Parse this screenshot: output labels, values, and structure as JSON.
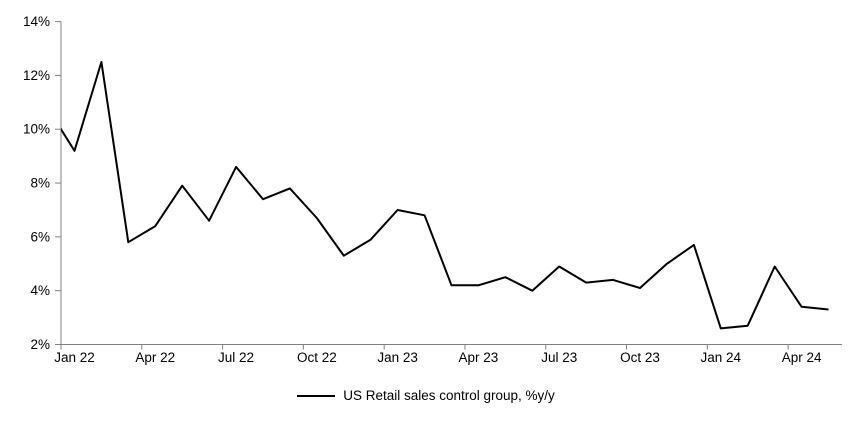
{
  "chart_data": {
    "type": "line",
    "title": "",
    "xlabel": "",
    "ylabel": "",
    "ylim": [
      2,
      14
    ],
    "ytick_step": 2,
    "ytick_labels": [
      "2%",
      "4%",
      "6%",
      "8%",
      "10%",
      "12%",
      "14%"
    ],
    "xtick_labels": [
      "Jan 22",
      "Apr 22",
      "Jul 22",
      "Oct 22",
      "Jan 23",
      "Apr 23",
      "Jul 23",
      "Oct 23",
      "Jan 24",
      "Apr 24"
    ],
    "x_label_interval_months": 3,
    "grid": false,
    "legend_position": "bottom-center",
    "colors": {
      "line": "#000000",
      "axis": "#808080",
      "tick_text": "#000000",
      "background": "#ffffff"
    },
    "series": [
      {
        "name": "US Retail sales control group, %y/y",
        "points": [
          {
            "label": "Dec 21",
            "value": 10.8,
            "clipped_at_left_edge": true
          },
          {
            "label": "Jan 22",
            "value": 9.2
          },
          {
            "label": "Feb 22",
            "value": 12.5
          },
          {
            "label": "Mar 22",
            "value": 5.8
          },
          {
            "label": "Apr 22",
            "value": 6.4
          },
          {
            "label": "May 22",
            "value": 7.9
          },
          {
            "label": "Jun 22",
            "value": 6.6
          },
          {
            "label": "Jul 22",
            "value": 8.6
          },
          {
            "label": "Aug 22",
            "value": 7.4
          },
          {
            "label": "Sep 22",
            "value": 7.8
          },
          {
            "label": "Oct 22",
            "value": 6.7
          },
          {
            "label": "Nov 22",
            "value": 5.3
          },
          {
            "label": "Dec 22",
            "value": 5.9
          },
          {
            "label": "Jan 23",
            "value": 7.0
          },
          {
            "label": "Feb 23",
            "value": 6.8
          },
          {
            "label": "Mar 23",
            "value": 4.2
          },
          {
            "label": "Apr 23",
            "value": 4.2
          },
          {
            "label": "May 23",
            "value": 4.5
          },
          {
            "label": "Jun 23",
            "value": 4.0
          },
          {
            "label": "Jul 23",
            "value": 4.9
          },
          {
            "label": "Aug 23",
            "value": 4.3
          },
          {
            "label": "Sep 23",
            "value": 4.4
          },
          {
            "label": "Oct 23",
            "value": 4.1
          },
          {
            "label": "Nov 23",
            "value": 5.0
          },
          {
            "label": "Dec 23",
            "value": 5.7
          },
          {
            "label": "Jan 24",
            "value": 2.6
          },
          {
            "label": "Feb 24",
            "value": 2.7
          },
          {
            "label": "Mar 24",
            "value": 4.9
          },
          {
            "label": "Apr 24",
            "value": 3.4
          },
          {
            "label": "May 24",
            "value": 3.3
          }
        ]
      }
    ]
  }
}
